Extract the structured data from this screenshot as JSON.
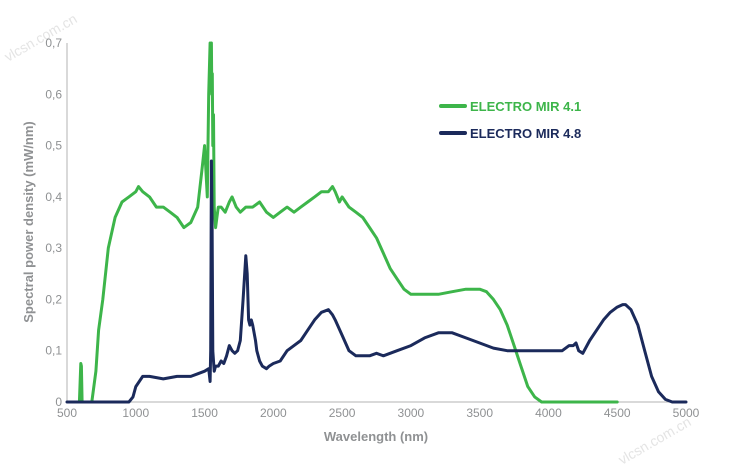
{
  "watermark": "vlcsn.com.cn",
  "chart_data": {
    "type": "line",
    "title": "",
    "xlabel": "Wavelength (nm)",
    "ylabel": "Spectral power density (mW/nm)",
    "xlim": [
      500,
      5000
    ],
    "ylim": [
      0,
      0.7
    ],
    "xticks": [
      "500",
      "1000",
      "1500",
      "2000",
      "2500",
      "3000",
      "3500",
      "4000",
      "4500",
      "5000"
    ],
    "yticks": [
      "0",
      "0,1",
      "0,2",
      "0,3",
      "0,4",
      "0,5",
      "0,6",
      "0,7"
    ],
    "grid": false,
    "legend_position": "top-right",
    "series": [
      {
        "name": "ELECTRO MIR 4.1",
        "color": "#3db54a",
        "x": [
          580,
          590,
          600,
          605,
          610,
          620,
          680,
          710,
          730,
          760,
          800,
          850,
          900,
          950,
          1000,
          1020,
          1050,
          1100,
          1150,
          1200,
          1250,
          1300,
          1350,
          1400,
          1450,
          1480,
          1500,
          1520,
          1530,
          1540,
          1545,
          1550,
          1553,
          1556,
          1560,
          1565,
          1570,
          1575,
          1580,
          1590,
          1600,
          1620,
          1650,
          1680,
          1700,
          1730,
          1760,
          1800,
          1850,
          1900,
          1950,
          2000,
          2050,
          2100,
          2150,
          2200,
          2250,
          2300,
          2350,
          2400,
          2430,
          2450,
          2480,
          2500,
          2550,
          2600,
          2650,
          2700,
          2750,
          2800,
          2850,
          2900,
          2950,
          3000,
          3100,
          3200,
          3300,
          3400,
          3500,
          3550,
          3600,
          3650,
          3700,
          3750,
          3800,
          3850,
          3900,
          3950,
          4000,
          4050,
          4100,
          4150,
          4200,
          4300,
          4500
        ],
        "values": [
          0,
          0,
          0.075,
          0.07,
          0,
          0,
          0,
          0.06,
          0.14,
          0.2,
          0.3,
          0.36,
          0.39,
          0.4,
          0.41,
          0.42,
          0.41,
          0.4,
          0.38,
          0.38,
          0.37,
          0.36,
          0.34,
          0.35,
          0.38,
          0.45,
          0.5,
          0.4,
          0.6,
          0.7,
          0.66,
          0.7,
          0.6,
          0.64,
          0.5,
          0.56,
          0.38,
          0.36,
          0.34,
          0.36,
          0.38,
          0.38,
          0.37,
          0.39,
          0.4,
          0.38,
          0.37,
          0.38,
          0.38,
          0.39,
          0.37,
          0.36,
          0.37,
          0.38,
          0.37,
          0.38,
          0.39,
          0.4,
          0.41,
          0.41,
          0.42,
          0.41,
          0.39,
          0.4,
          0.38,
          0.37,
          0.36,
          0.34,
          0.32,
          0.29,
          0.26,
          0.24,
          0.22,
          0.21,
          0.21,
          0.21,
          0.215,
          0.22,
          0.22,
          0.215,
          0.2,
          0.18,
          0.15,
          0.11,
          0.07,
          0.03,
          0.01,
          0,
          0,
          0,
          0,
          0,
          0,
          0,
          0
        ]
      },
      {
        "name": "ELECTRO MIR 4.8",
        "color": "#1b2a5b",
        "x": [
          500,
          950,
          980,
          1000,
          1050,
          1100,
          1200,
          1300,
          1400,
          1450,
          1500,
          1530,
          1540,
          1545,
          1550,
          1555,
          1560,
          1570,
          1580,
          1600,
          1620,
          1640,
          1660,
          1680,
          1700,
          1720,
          1740,
          1760,
          1780,
          1800,
          1810,
          1820,
          1830,
          1840,
          1850,
          1870,
          1880,
          1900,
          1920,
          1950,
          1970,
          2000,
          2050,
          2100,
          2150,
          2200,
          2250,
          2300,
          2350,
          2400,
          2430,
          2450,
          2500,
          2550,
          2600,
          2650,
          2700,
          2750,
          2800,
          2900,
          3000,
          3100,
          3200,
          3300,
          3400,
          3500,
          3600,
          3700,
          3800,
          3900,
          4000,
          4050,
          4100,
          4150,
          4180,
          4200,
          4220,
          4250,
          4300,
          4350,
          4400,
          4450,
          4500,
          4540,
          4560,
          4600,
          4650,
          4700,
          4750,
          4800,
          4850,
          4900,
          4950,
          5000
        ],
        "values": [
          0,
          0,
          0.01,
          0.03,
          0.05,
          0.05,
          0.045,
          0.05,
          0.05,
          0.055,
          0.06,
          0.065,
          0.04,
          0.1,
          0.47,
          0.35,
          0.1,
          0.06,
          0.07,
          0.07,
          0.08,
          0.075,
          0.09,
          0.11,
          0.1,
          0.095,
          0.1,
          0.12,
          0.2,
          0.285,
          0.25,
          0.16,
          0.15,
          0.16,
          0.15,
          0.12,
          0.1,
          0.08,
          0.07,
          0.065,
          0.07,
          0.075,
          0.08,
          0.1,
          0.11,
          0.12,
          0.14,
          0.16,
          0.175,
          0.18,
          0.17,
          0.16,
          0.13,
          0.1,
          0.09,
          0.09,
          0.09,
          0.095,
          0.09,
          0.1,
          0.11,
          0.125,
          0.135,
          0.135,
          0.125,
          0.115,
          0.105,
          0.1,
          0.1,
          0.1,
          0.1,
          0.1,
          0.1,
          0.11,
          0.11,
          0.115,
          0.1,
          0.095,
          0.12,
          0.14,
          0.16,
          0.175,
          0.185,
          0.19,
          0.19,
          0.18,
          0.15,
          0.1,
          0.05,
          0.02,
          0.005,
          0,
          0,
          0
        ]
      }
    ]
  }
}
